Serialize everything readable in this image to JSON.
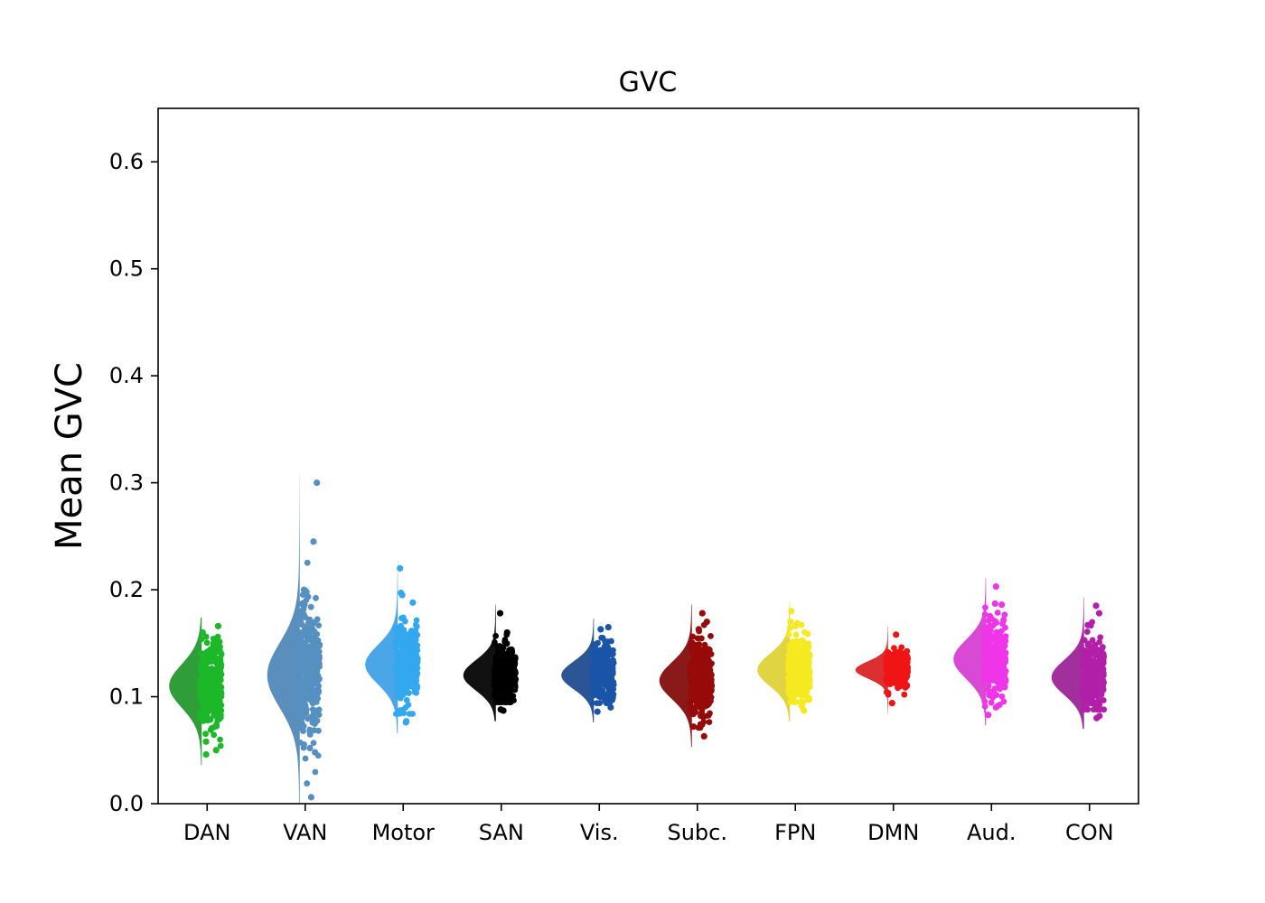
{
  "chart_data": {
    "type": "raincloud",
    "title": "GVC",
    "xlabel": "",
    "ylabel": "Mean GVC",
    "ylim": [
      0.0,
      0.65
    ],
    "yticks": [
      "0.0",
      "0.1",
      "0.2",
      "0.3",
      "0.4",
      "0.5",
      "0.6"
    ],
    "grid": false,
    "categories": [
      "DAN",
      "VAN",
      "Motor",
      "SAN",
      "Vis.",
      "Subc.",
      "FPN",
      "DMN",
      "Aud.",
      "CON"
    ],
    "series": [
      {
        "category": "DAN",
        "color": "#1db82a",
        "violin_color": "#2f9d38",
        "center": 0.11,
        "spread": 0.02,
        "min": 0.046,
        "max": 0.166,
        "extremes": [
          0.166,
          0.16,
          0.153,
          0.05,
          0.046,
          0.058
        ]
      },
      {
        "category": "VAN",
        "color": "#5590c0",
        "violin_color": "#5a8fbd",
        "center": 0.12,
        "spread": 0.03,
        "min": 0.006,
        "max": 0.3,
        "extremes": [
          0.3,
          0.245,
          0.2,
          0.199,
          0.052,
          0.048,
          0.006
        ]
      },
      {
        "category": "Motor",
        "color": "#33a8f0",
        "violin_color": "#4aa6e6",
        "center": 0.13,
        "spread": 0.018,
        "min": 0.076,
        "max": 0.22,
        "extremes": [
          0.22,
          0.197,
          0.195,
          0.188,
          0.076,
          0.077
        ]
      },
      {
        "category": "SAN",
        "color": "#000000",
        "violin_color": "#111111",
        "center": 0.12,
        "spread": 0.014,
        "min": 0.087,
        "max": 0.178,
        "extremes": [
          0.178,
          0.16,
          0.088,
          0.087
        ]
      },
      {
        "category": "Vis.",
        "color": "#1a55a8",
        "violin_color": "#2c5595",
        "center": 0.12,
        "spread": 0.013,
        "min": 0.086,
        "max": 0.165,
        "extremes": [
          0.165,
          0.163,
          0.086,
          0.09
        ]
      },
      {
        "category": "Subc.",
        "color": "#960a0a",
        "violin_color": "#8a1a1a",
        "center": 0.115,
        "spread": 0.017,
        "min": 0.063,
        "max": 0.178,
        "extremes": [
          0.178,
          0.17,
          0.163,
          0.072,
          0.074,
          0.063
        ]
      },
      {
        "category": "FPN",
        "color": "#f5e920",
        "violin_color": "#e1d442",
        "center": 0.125,
        "spread": 0.015,
        "min": 0.087,
        "max": 0.18,
        "extremes": [
          0.18,
          0.17,
          0.166,
          0.087,
          0.091
        ]
      },
      {
        "category": "DMN",
        "color": "#f01515",
        "violin_color": "#dc2f2f",
        "center": 0.125,
        "spread": 0.008,
        "min": 0.094,
        "max": 0.158,
        "extremes": [
          0.158,
          0.094
        ]
      },
      {
        "category": "Aud.",
        "color": "#f035e8",
        "violin_color": "#d84ad3",
        "center": 0.135,
        "spread": 0.018,
        "min": 0.083,
        "max": 0.203,
        "extremes": [
          0.203,
          0.187,
          0.186,
          0.09,
          0.083
        ]
      },
      {
        "category": "CON",
        "color": "#b21fa8",
        "violin_color": "#a2309c",
        "center": 0.118,
        "spread": 0.016,
        "min": 0.08,
        "max": 0.185,
        "extremes": [
          0.185,
          0.178,
          0.167,
          0.08,
          0.082
        ]
      }
    ]
  }
}
